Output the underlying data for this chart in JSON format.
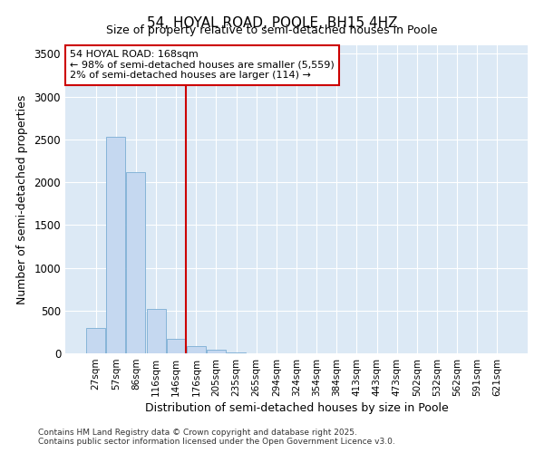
{
  "title": "54, HOYAL ROAD, POOLE, BH15 4HZ",
  "subtitle": "Size of property relative to semi-detached houses in Poole",
  "xlabel": "Distribution of semi-detached houses by size in Poole",
  "ylabel": "Number of semi-detached properties",
  "categories": [
    "27sqm",
    "57sqm",
    "86sqm",
    "116sqm",
    "146sqm",
    "176sqm",
    "205sqm",
    "235sqm",
    "265sqm",
    "294sqm",
    "324sqm",
    "354sqm",
    "384sqm",
    "413sqm",
    "443sqm",
    "473sqm",
    "502sqm",
    "532sqm",
    "562sqm",
    "591sqm",
    "621sqm"
  ],
  "values": [
    300,
    2530,
    2120,
    520,
    165,
    90,
    40,
    10,
    2,
    0,
    0,
    0,
    0,
    0,
    0,
    0,
    0,
    0,
    0,
    0,
    0
  ],
  "bar_color": "#c5d8f0",
  "bar_edge_color": "#7aadd4",
  "vline_color": "#cc0000",
  "vline_position": 5,
  "annotation_line1": "54 HOYAL ROAD: 168sqm",
  "annotation_line2": "← 98% of semi-detached houses are smaller (5,559)",
  "annotation_line3": "2% of semi-detached houses are larger (114) →",
  "annotation_box_color": "#cc0000",
  "annotation_bg_color": "#ffffff",
  "ylim": [
    0,
    3600
  ],
  "yticks": [
    0,
    500,
    1000,
    1500,
    2000,
    2500,
    3000,
    3500
  ],
  "plot_bg_color": "#dce9f5",
  "fig_bg_color": "#ffffff",
  "grid_color": "#ffffff",
  "footer_line1": "Contains HM Land Registry data © Crown copyright and database right 2025.",
  "footer_line2": "Contains public sector information licensed under the Open Government Licence v3.0."
}
